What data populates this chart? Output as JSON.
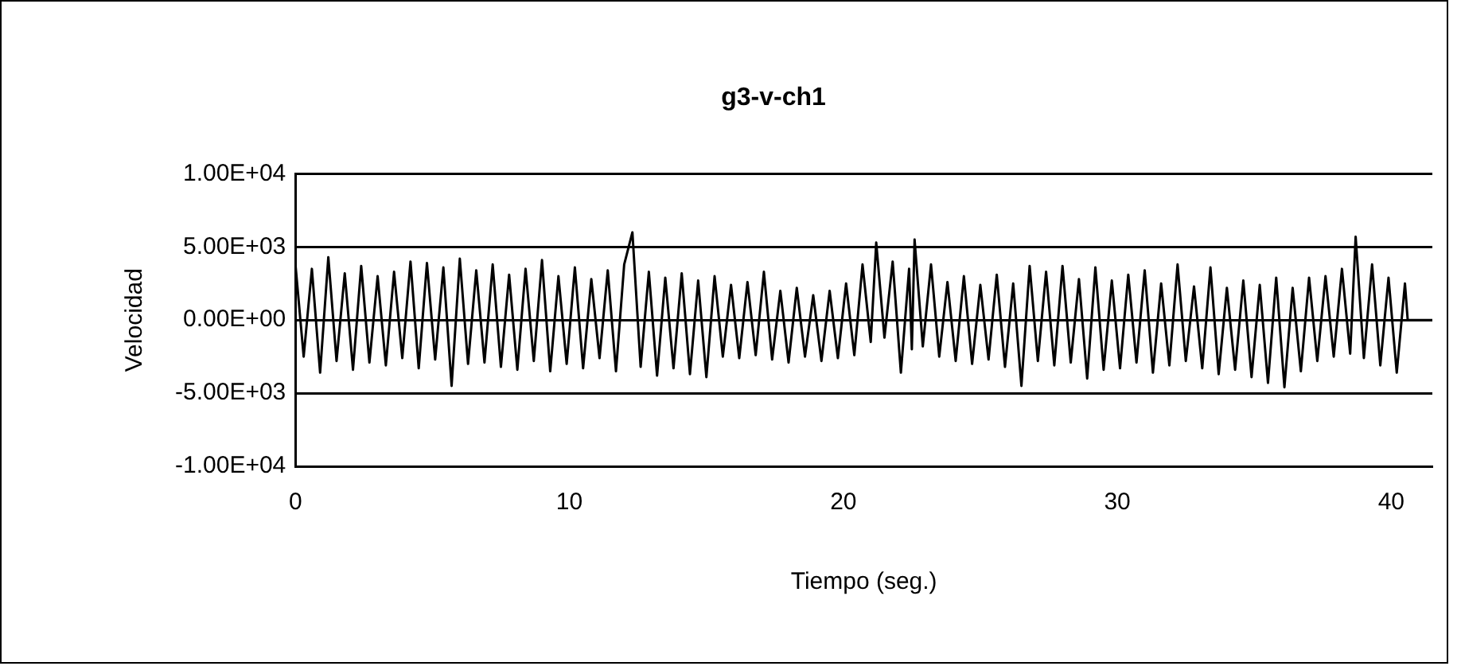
{
  "chart_data": {
    "type": "line",
    "title": "g3-v-ch1",
    "xlabel": "Tiempo (seg.)",
    "ylabel": "Velocidad",
    "xlim": [
      0,
      41.5
    ],
    "xticks": [
      0,
      10,
      20,
      30,
      40
    ],
    "ylim": [
      -10000,
      10000
    ],
    "yticks": [
      {
        "value": -10000,
        "label": "-1.00E+04"
      },
      {
        "value": -5000,
        "label": "-5.00E+03"
      },
      {
        "value": 0,
        "label": "0.00E+00"
      },
      {
        "value": 5000,
        "label": "5.00E+03"
      },
      {
        "value": 10000,
        "label": "1.00E+04"
      }
    ],
    "grid": "y",
    "legend": false,
    "marker": "none",
    "line_style": "solid",
    "series": [
      {
        "color": "#000000",
        "x": [
          0,
          0.3,
          0.6,
          0.9,
          1.2,
          1.5,
          1.8,
          2.1,
          2.4,
          2.7,
          3,
          3.3,
          3.6,
          3.9,
          4.2,
          4.5,
          4.8,
          5.1,
          5.4,
          5.7,
          6,
          6.3,
          6.6,
          6.9,
          7.2,
          7.5,
          7.8,
          8.1,
          8.4,
          8.7,
          9,
          9.3,
          9.6,
          9.9,
          10.2,
          10.5,
          10.8,
          11.1,
          11.4,
          11.7,
          12,
          12.3,
          12.6,
          12.9,
          13.2,
          13.5,
          13.8,
          14.1,
          14.4,
          14.7,
          15,
          15.3,
          15.6,
          15.9,
          16.2,
          16.5,
          16.8,
          17.1,
          17.4,
          17.7,
          18,
          18.3,
          18.6,
          18.9,
          19.2,
          19.5,
          19.8,
          20.1,
          20.4,
          20.7,
          21,
          21.2,
          21.5,
          21.8,
          22.1,
          22.4,
          22.5,
          22.6,
          22.9,
          23.2,
          23.5,
          23.8,
          24.1,
          24.4,
          24.7,
          25,
          25.3,
          25.6,
          25.9,
          26.2,
          26.5,
          26.8,
          27.1,
          27.4,
          27.7,
          28,
          28.3,
          28.6,
          28.9,
          29.2,
          29.5,
          29.8,
          30.1,
          30.4,
          30.7,
          31,
          31.3,
          31.6,
          31.9,
          32.2,
          32.5,
          32.8,
          33.1,
          33.4,
          33.7,
          34,
          34.3,
          34.6,
          34.9,
          35.2,
          35.5,
          35.8,
          36.1,
          36.4,
          36.7,
          37,
          37.3,
          37.6,
          37.9,
          38.2,
          38.5,
          38.7,
          39,
          39.3,
          39.6,
          39.9,
          40.2,
          40.5,
          40.6,
          41.5
        ],
        "values": [
          3800,
          -2500,
          3500,
          -3600,
          4300,
          -2800,
          3200,
          -3400,
          3700,
          -2900,
          3000,
          -3100,
          3300,
          -2600,
          4000,
          -3300,
          3900,
          -2700,
          3600,
          -4500,
          4200,
          -3000,
          3400,
          -2900,
          3800,
          -3200,
          3100,
          -3400,
          3500,
          -2800,
          4100,
          -3500,
          3000,
          -3000,
          3600,
          -3300,
          2800,
          -2600,
          3400,
          -3500,
          3800,
          6000,
          -3200,
          3300,
          -3800,
          2900,
          -3300,
          3200,
          -3700,
          2700,
          -3900,
          3000,
          -2500,
          2400,
          -2600,
          2600,
          -2400,
          3300,
          -2700,
          2000,
          -2900,
          2200,
          -2500,
          1700,
          -2800,
          2000,
          -2600,
          2500,
          -2400,
          3800,
          -1500,
          5300,
          -1200,
          4000,
          -3600,
          3500,
          -2000,
          5500,
          -1800,
          3800,
          -2500,
          2600,
          -2800,
          3000,
          -3000,
          2400,
          -2700,
          3100,
          -3200,
          2500,
          -4500,
          3700,
          -2800,
          3300,
          -3100,
          3700,
          -2900,
          2800,
          -4000,
          3600,
          -3400,
          2700,
          -3300,
          3100,
          -2900,
          3400,
          -3600,
          2500,
          -3100,
          3800,
          -2800,
          2300,
          -3300,
          3600,
          -3700,
          2200,
          -3400,
          2700,
          -3900,
          2400,
          -4300,
          2900,
          -4600,
          2200,
          -3500,
          2900,
          -2800,
          3000,
          -2500,
          3500,
          -2300,
          5700,
          -2600,
          3800,
          -3100,
          2900,
          -3600,
          2500,
          0,
          0
        ]
      }
    ]
  }
}
